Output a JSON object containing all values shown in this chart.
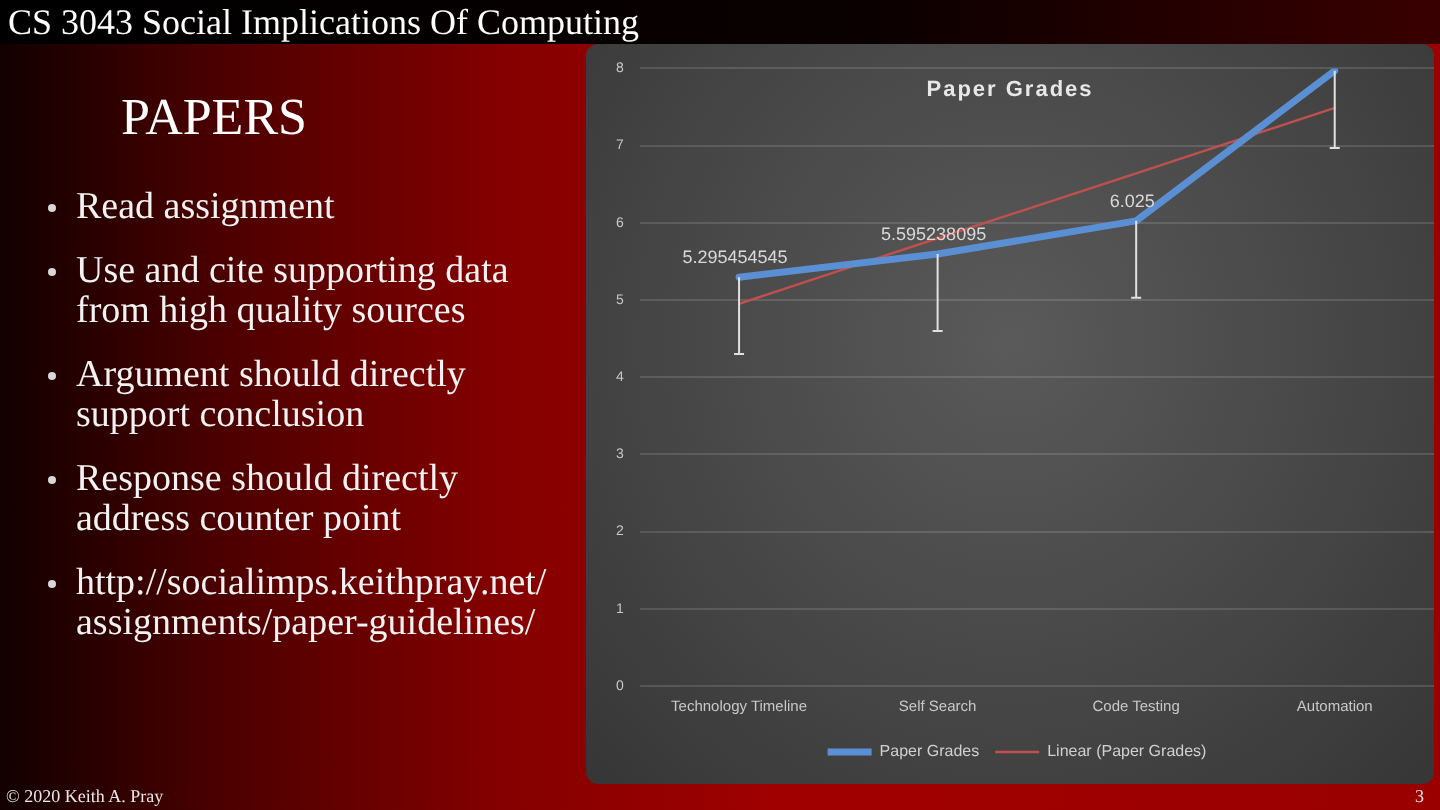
{
  "chart_data": {
    "type": "line",
    "title": "Paper Grades",
    "categories": [
      "Technology Timeline",
      "Self Search",
      "Code Testing",
      "Automation"
    ],
    "series": [
      {
        "name": "Paper Grades",
        "color": "#5b8fd4",
        "values": [
          5.295454545,
          5.595238095,
          6.025,
          7.97
        ],
        "errors": [
          [
            4.3,
            5.295454545
          ],
          [
            4.6,
            5.595238095
          ],
          [
            5.03,
            6.025
          ],
          [
            6.97,
            7.97
          ]
        ],
        "value_labels": [
          "5.295454545",
          "5.595238095",
          "6.025",
          null
        ]
      },
      {
        "name": "Linear (Paper Grades)",
        "type": "line",
        "color": "#c0504d",
        "values": [
          4.95,
          5.8,
          6.64,
          7.49
        ]
      }
    ],
    "ylim": [
      0,
      8
    ],
    "yticks": [
      0,
      1,
      2,
      3,
      4,
      5,
      6,
      7,
      8
    ],
    "grid": "y",
    "legend": "bottom",
    "marker": "none",
    "line_style": "solid",
    "annotations": [
      "CS 3043 Social Implications Of Computing",
      "PAPERS",
      "Read assignment",
      "Use and cite supporting data from high quality sources",
      "Argument should directly support conclusion",
      "Response should directly address counter point",
      "http://socialimps.keithpray.net/assignments/paper-guidelines/",
      "© 2020 Keith A. Pray",
      "3"
    ]
  }
}
